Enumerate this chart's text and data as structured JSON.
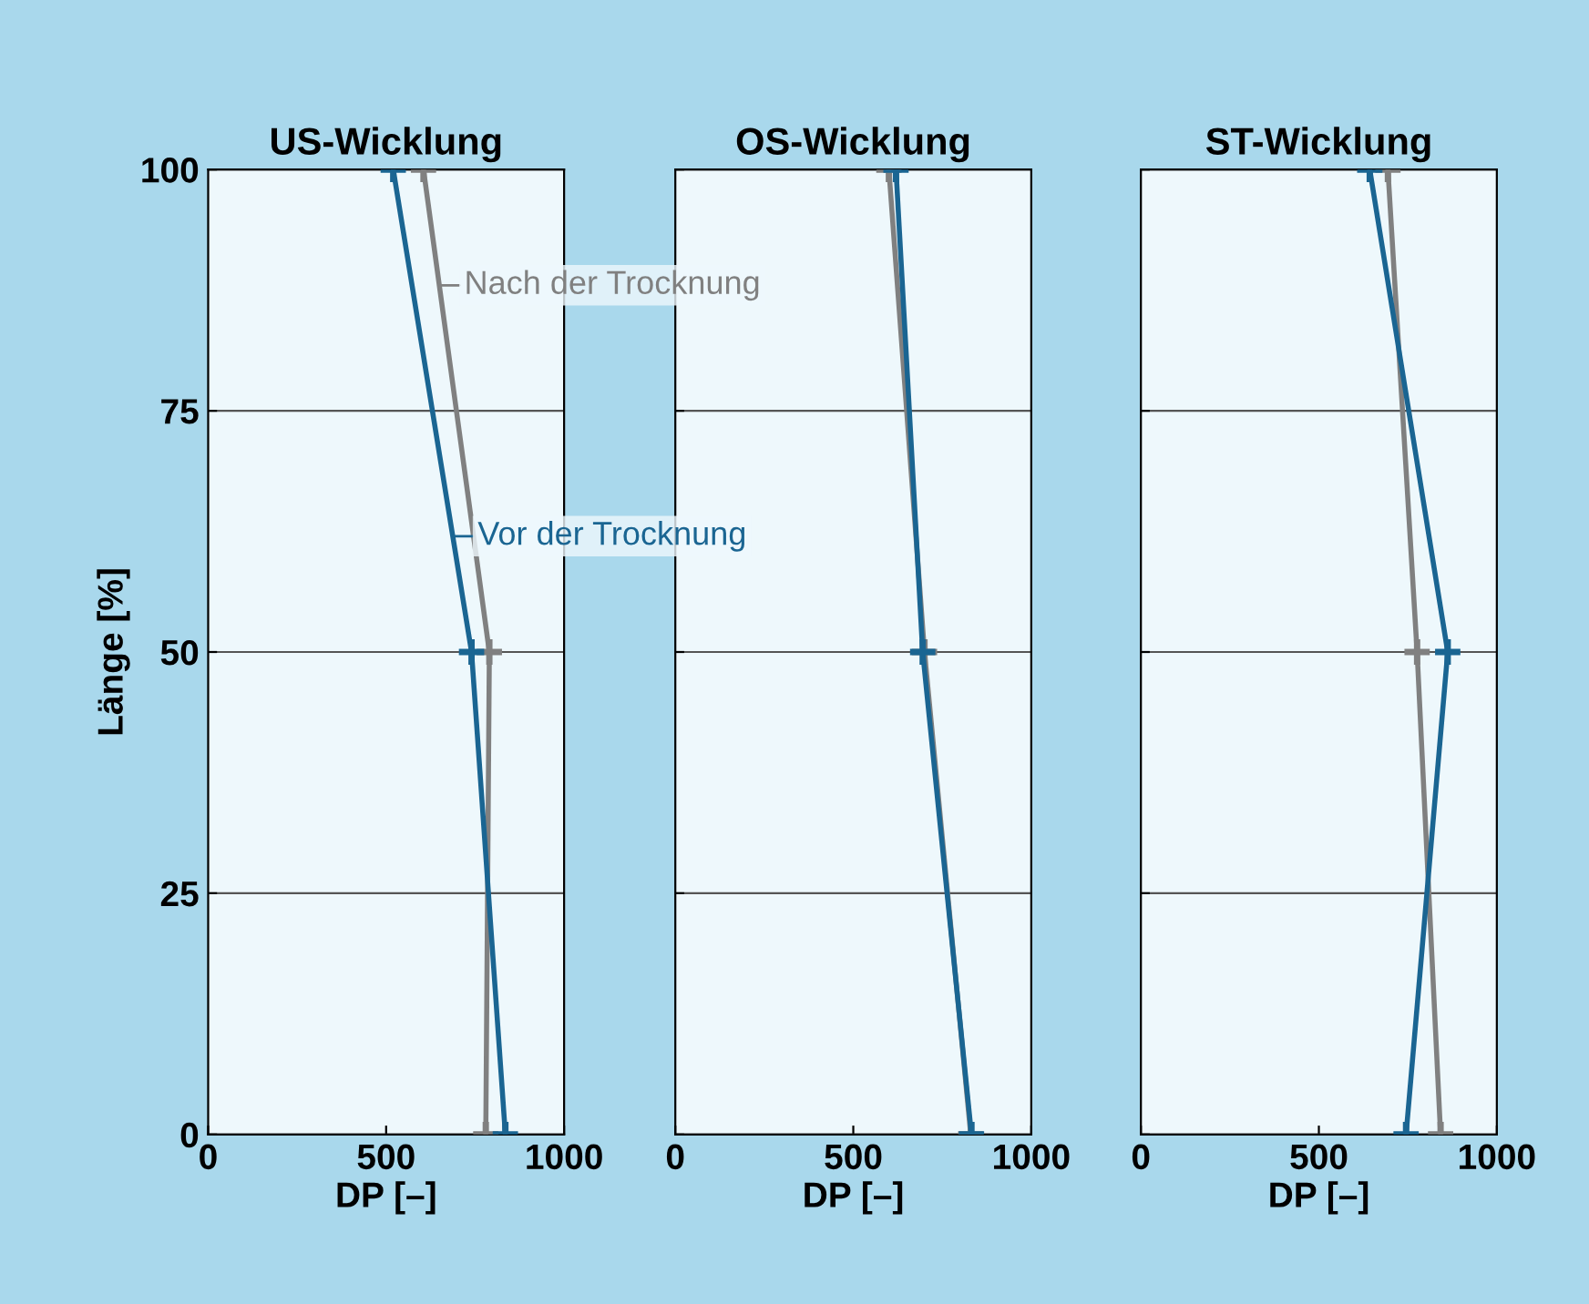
{
  "chart_data": [
    {
      "type": "line",
      "title": "US-Wicklung",
      "xlabel": "DP [–]",
      "ylabel": "Länge [%]",
      "xlim": [
        0,
        1000
      ],
      "xticks": [
        0,
        500,
        1000
      ],
      "ylim": [
        0,
        100
      ],
      "yticks": [
        0,
        25,
        50,
        75,
        100
      ],
      "grid": "y",
      "marker": "cross",
      "legend": "top right",
      "series": [
        {
          "name": "Nach der Trocknung",
          "color": "#808080",
          "x": [
            780,
            790,
            605
          ],
          "values": [
            0,
            50,
            100
          ]
        },
        {
          "name": "Vor der Trocknung",
          "color": "#1a6592",
          "x": [
            835,
            740,
            520
          ],
          "values": [
            0,
            50,
            100
          ]
        }
      ]
    },
    {
      "type": "line",
      "title": "OS-Wicklung",
      "xlabel": "DP [–]",
      "xlim": [
        0,
        1000
      ],
      "xticks": [
        0,
        500,
        1000
      ],
      "ylim": [
        0,
        100
      ],
      "yticks": [
        0,
        25,
        50,
        75,
        100
      ],
      "grid": "y",
      "marker": "cross",
      "tick_labels": "x",
      "series": [
        {
          "color": "#808080",
          "x": [
            830,
            700,
            600
          ],
          "values": [
            0,
            50,
            100
          ]
        },
        {
          "color": "#1a6592",
          "x": [
            832,
            695,
            620
          ],
          "values": [
            0,
            50,
            100
          ]
        }
      ]
    },
    {
      "type": "line",
      "title": "ST-Wicklung",
      "xlabel": "DP [–]",
      "xlim": [
        0,
        1000
      ],
      "xticks": [
        0,
        500,
        1000
      ],
      "ylim": [
        0,
        100
      ],
      "yticks": [
        0,
        25,
        50,
        75,
        100
      ],
      "grid": "y",
      "marker": "cross",
      "tick_labels": "x",
      "series": [
        {
          "color": "#808080",
          "x": [
            842,
            776,
            694
          ],
          "values": [
            0,
            50,
            100
          ]
        },
        {
          "color": "#1a6592",
          "x": [
            745,
            862,
            643
          ],
          "values": [
            0,
            50,
            100
          ]
        }
      ]
    }
  ]
}
